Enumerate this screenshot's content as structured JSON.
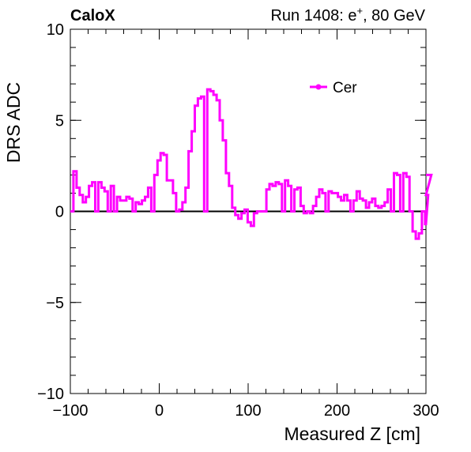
{
  "header": {
    "left": "CaloX",
    "right_prefix": "Run 1408: e",
    "right_sup": "+",
    "right_suffix": ", 80 GeV"
  },
  "chart_data": {
    "type": "line",
    "style": "step-histogram",
    "title": "",
    "xlabel": "Measured Z [cm]",
    "ylabel": "DRS ADC",
    "xlim": [
      -100,
      300
    ],
    "ylim": [
      -10,
      10
    ],
    "x_ticks": [
      -100,
      0,
      100,
      200,
      300
    ],
    "x_tick_labels": [
      "−100",
      "0",
      "100",
      "200",
      "300"
    ],
    "y_ticks": [
      -10,
      -5,
      0,
      5,
      10
    ],
    "y_tick_labels": [
      "−10",
      "−5",
      "0",
      "5",
      "10"
    ],
    "bin_width": 3.5,
    "grid": false,
    "legend_position": "top-right",
    "zero_line": true,
    "series": [
      {
        "name": "Cer",
        "color": "#ff00ff",
        "values": [
          0.0,
          2.2,
          1.3,
          0.9,
          0.5,
          0.8,
          1.4,
          1.6,
          0.0,
          1.6,
          1.3,
          1.1,
          0.0,
          1.4,
          0.0,
          0.8,
          0.6,
          0.6,
          0.8,
          0.7,
          0.0,
          0.5,
          0.4,
          0.6,
          0.8,
          1.3,
          0.0,
          2.0,
          2.8,
          3.2,
          3.1,
          1.7,
          1.7,
          1.0,
          0.0,
          0.1,
          0.5,
          1.3,
          3.3,
          4.4,
          5.8,
          6.2,
          6.3,
          0.0,
          6.7,
          6.6,
          6.4,
          6.1,
          5.0,
          3.9,
          2.1,
          1.4,
          0.2,
          -0.2,
          -0.4,
          -0.1,
          0.1,
          -0.6,
          -0.8,
          -0.1,
          0.0,
          0.0,
          0.0,
          1.2,
          1.5,
          1.4,
          1.6,
          1.5,
          0.0,
          1.7,
          1.4,
          0.0,
          1.2,
          1.3,
          0.3,
          -0.1,
          0.0,
          -0.1,
          0.3,
          0.8,
          1.2,
          1.0,
          0.0,
          1.1,
          1.0,
          1.0,
          0.8,
          0.6,
          0.9,
          0.6,
          0.0,
          0.6,
          1.1,
          0.7,
          0.6,
          0.2,
          0.5,
          0.7,
          0.3,
          0.2,
          0.3,
          0.5,
          1.2,
          0.0,
          2.1,
          2.0,
          0.0,
          2.1,
          1.9,
          0.0,
          -1.1,
          -1.5,
          -1.2,
          0.0,
          -0.7,
          0.9,
          2.0
        ]
      }
    ]
  }
}
